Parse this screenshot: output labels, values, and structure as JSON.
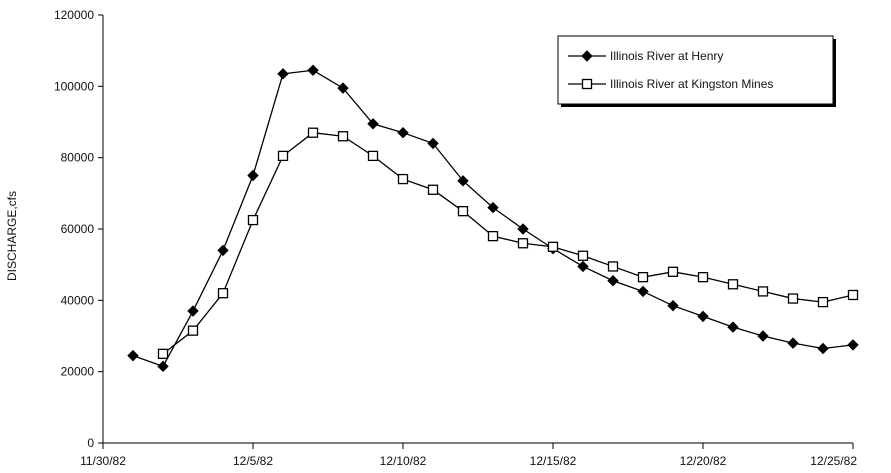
{
  "chart_data": {
    "type": "line",
    "title": "",
    "xlabel": "",
    "ylabel": "DISCHARGE,cfs",
    "x_tick_labels": [
      "11/30/82",
      "12/5/82",
      "12/10/82",
      "12/15/82",
      "12/20/82",
      "12/25/82"
    ],
    "x_tick_dates": [
      "1982-11-30",
      "1982-12-05",
      "1982-12-10",
      "1982-12-15",
      "1982-12-20",
      "1982-12-25"
    ],
    "xlim": [
      "1982-11-30",
      "1982-12-25"
    ],
    "ylim": [
      0,
      120000
    ],
    "y_ticks": [
      0,
      20000,
      40000,
      60000,
      80000,
      100000,
      120000
    ],
    "grid": false,
    "legend_position": "top-right",
    "series": [
      {
        "name": "Illinois River at Henry",
        "marker": "filled-diamond",
        "color": "#000000",
        "x": [
          "1982-12-01",
          "1982-12-02",
          "1982-12-03",
          "1982-12-04",
          "1982-12-05",
          "1982-12-06",
          "1982-12-07",
          "1982-12-08",
          "1982-12-09",
          "1982-12-10",
          "1982-12-11",
          "1982-12-12",
          "1982-12-13",
          "1982-12-14",
          "1982-12-15",
          "1982-12-16",
          "1982-12-17",
          "1982-12-18",
          "1982-12-19",
          "1982-12-20",
          "1982-12-21",
          "1982-12-22",
          "1982-12-23",
          "1982-12-24",
          "1982-12-25"
        ],
        "y": [
          24500,
          21500,
          37000,
          54000,
          75000,
          103500,
          104500,
          99500,
          89500,
          87000,
          84000,
          73500,
          66000,
          60000,
          54500,
          49500,
          45500,
          42500,
          38500,
          35500,
          32500,
          30000,
          28000,
          26500,
          27500
        ]
      },
      {
        "name": "Illinois River at Kingston Mines",
        "marker": "open-square",
        "color": "#000000",
        "x": [
          "1982-12-02",
          "1982-12-03",
          "1982-12-04",
          "1982-12-05",
          "1982-12-06",
          "1982-12-07",
          "1982-12-08",
          "1982-12-09",
          "1982-12-10",
          "1982-12-11",
          "1982-12-12",
          "1982-12-13",
          "1982-12-14",
          "1982-12-15",
          "1982-12-16",
          "1982-12-17",
          "1982-12-18",
          "1982-12-19",
          "1982-12-20",
          "1982-12-21",
          "1982-12-22",
          "1982-12-23",
          "1982-12-24",
          "1982-12-25"
        ],
        "y": [
          25000,
          31500,
          42000,
          62500,
          80500,
          87000,
          86000,
          80500,
          74000,
          71000,
          65000,
          58000,
          56000,
          55000,
          52500,
          49500,
          46500,
          48000,
          46500,
          44500,
          42500,
          40500,
          39500,
          41500
        ]
      }
    ]
  }
}
